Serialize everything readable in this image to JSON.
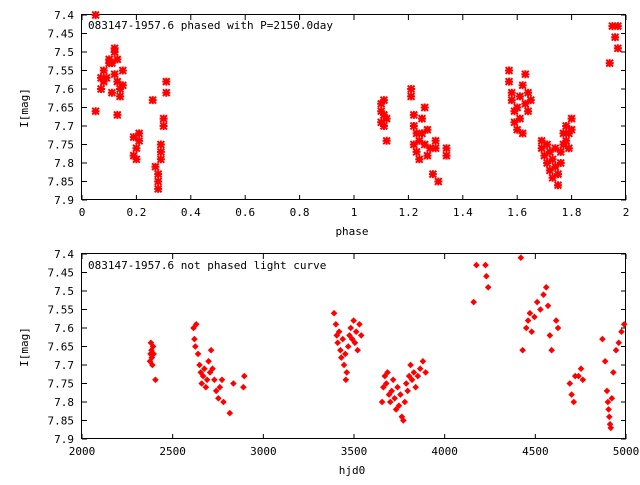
{
  "chart_data": [
    {
      "type": "scatter",
      "title": "083147-1957.6 phased with P=2150.0day",
      "xlabel": "phase",
      "ylabel": "I[mag]",
      "xlim": [
        0,
        2
      ],
      "ylim": [
        7.4,
        7.9
      ],
      "y_inverted": true,
      "x_ticks": [
        "0",
        "0.2",
        "0.4",
        "0.6",
        "0.8",
        "1",
        "1.2",
        "1.4",
        "1.6",
        "1.8",
        "2"
      ],
      "y_ticks": [
        "7.4",
        "7.45",
        "7.5",
        "7.55",
        "7.6",
        "7.65",
        "7.7",
        "7.75",
        "7.8",
        "7.85",
        "7.9"
      ],
      "grid": false,
      "marker_color": "#ff0000",
      "points": [
        [
          0.05,
          7.4
        ],
        [
          0.05,
          7.66
        ],
        [
          0.07,
          7.57
        ],
        [
          0.07,
          7.6
        ],
        [
          0.08,
          7.58
        ],
        [
          0.08,
          7.55
        ],
        [
          0.09,
          7.57
        ],
        [
          0.1,
          7.53
        ],
        [
          0.1,
          7.52
        ],
        [
          0.11,
          7.61
        ],
        [
          0.11,
          7.53
        ],
        [
          0.12,
          7.49
        ],
        [
          0.12,
          7.5
        ],
        [
          0.12,
          7.56
        ],
        [
          0.13,
          7.58
        ],
        [
          0.13,
          7.52
        ],
        [
          0.13,
          7.67
        ],
        [
          0.14,
          7.62
        ],
        [
          0.14,
          7.6
        ],
        [
          0.15,
          7.55
        ],
        [
          0.15,
          7.59
        ],
        [
          0.19,
          7.78
        ],
        [
          0.19,
          7.73
        ],
        [
          0.2,
          7.76
        ],
        [
          0.2,
          7.79
        ],
        [
          0.21,
          7.72
        ],
        [
          0.21,
          7.74
        ],
        [
          0.26,
          7.63
        ],
        [
          0.27,
          7.81
        ],
        [
          0.28,
          7.85
        ],
        [
          0.28,
          7.87
        ],
        [
          0.28,
          7.83
        ],
        [
          0.29,
          7.79
        ],
        [
          0.29,
          7.75
        ],
        [
          0.29,
          7.77
        ],
        [
          0.3,
          7.68
        ],
        [
          0.3,
          7.7
        ],
        [
          0.31,
          7.58
        ],
        [
          0.31,
          7.61
        ],
        [
          1.1,
          7.66
        ],
        [
          1.1,
          7.69
        ],
        [
          1.1,
          7.64
        ],
        [
          1.11,
          7.67
        ],
        [
          1.11,
          7.7
        ],
        [
          1.11,
          7.63
        ],
        [
          1.12,
          7.68
        ],
        [
          1.12,
          7.74
        ],
        [
          1.21,
          7.6
        ],
        [
          1.21,
          7.62
        ],
        [
          1.22,
          7.67
        ],
        [
          1.22,
          7.7
        ],
        [
          1.22,
          7.75
        ],
        [
          1.23,
          7.72
        ],
        [
          1.23,
          7.77
        ],
        [
          1.24,
          7.74
        ],
        [
          1.24,
          7.79
        ],
        [
          1.25,
          7.68
        ],
        [
          1.25,
          7.72
        ],
        [
          1.26,
          7.65
        ],
        [
          1.26,
          7.75
        ],
        [
          1.27,
          7.71
        ],
        [
          1.27,
          7.78
        ],
        [
          1.28,
          7.76
        ],
        [
          1.29,
          7.83
        ],
        [
          1.3,
          7.74
        ],
        [
          1.3,
          7.76
        ],
        [
          1.31,
          7.85
        ],
        [
          1.34,
          7.76
        ],
        [
          1.34,
          7.78
        ],
        [
          1.57,
          7.55
        ],
        [
          1.57,
          7.58
        ],
        [
          1.58,
          7.61
        ],
        [
          1.58,
          7.63
        ],
        [
          1.59,
          7.66
        ],
        [
          1.59,
          7.69
        ],
        [
          1.6,
          7.71
        ],
        [
          1.6,
          7.65
        ],
        [
          1.61,
          7.62
        ],
        [
          1.61,
          7.68
        ],
        [
          1.62,
          7.72
        ],
        [
          1.62,
          7.59
        ],
        [
          1.63,
          7.56
        ],
        [
          1.63,
          7.64
        ],
        [
          1.64,
          7.61
        ],
        [
          1.64,
          7.66
        ],
        [
          1.65,
          7.63
        ],
        [
          1.69,
          7.74
        ],
        [
          1.69,
          7.76
        ],
        [
          1.7,
          7.78
        ],
        [
          1.71,
          7.75
        ],
        [
          1.71,
          7.8
        ],
        [
          1.72,
          7.77
        ],
        [
          1.72,
          7.82
        ],
        [
          1.73,
          7.79
        ],
        [
          1.73,
          7.84
        ],
        [
          1.74,
          7.76
        ],
        [
          1.74,
          7.81
        ],
        [
          1.75,
          7.83
        ],
        [
          1.75,
          7.86
        ],
        [
          1.76,
          7.8
        ],
        [
          1.76,
          7.77
        ],
        [
          1.77,
          7.75
        ],
        [
          1.77,
          7.72
        ],
        [
          1.78,
          7.74
        ],
        [
          1.78,
          7.7
        ],
        [
          1.79,
          7.76
        ],
        [
          1.79,
          7.72
        ],
        [
          1.8,
          7.68
        ],
        [
          1.8,
          7.71
        ],
        [
          1.94,
          7.53
        ],
        [
          1.95,
          7.43
        ],
        [
          1.96,
          7.46
        ],
        [
          1.97,
          7.43
        ],
        [
          1.97,
          7.49
        ]
      ]
    },
    {
      "type": "scatter",
      "title": "083147-1957.6 not phased light curve",
      "xlabel": "hjd0",
      "ylabel": "I[mag]",
      "xlim": [
        2000,
        5000
      ],
      "ylim": [
        7.4,
        7.9
      ],
      "y_inverted": true,
      "x_ticks": [
        "2000",
        "2500",
        "3000",
        "3500",
        "4000",
        "4500",
        "5000"
      ],
      "y_ticks": [
        "7.4",
        "7.45",
        "7.5",
        "7.55",
        "7.6",
        "7.65",
        "7.7",
        "7.75",
        "7.8",
        "7.85",
        "7.9"
      ],
      "grid": false,
      "marker_color": "#ff0000",
      "points": [
        [
          2375,
          7.69
        ],
        [
          2378,
          7.67
        ],
        [
          2380,
          7.64
        ],
        [
          2383,
          7.66
        ],
        [
          2385,
          7.68
        ],
        [
          2388,
          7.7
        ],
        [
          2392,
          7.65
        ],
        [
          2395,
          7.67
        ],
        [
          2405,
          7.74
        ],
        [
          2615,
          7.6
        ],
        [
          2620,
          7.63
        ],
        [
          2625,
          7.65
        ],
        [
          2630,
          7.59
        ],
        [
          2640,
          7.67
        ],
        [
          2648,
          7.7
        ],
        [
          2655,
          7.72
        ],
        [
          2660,
          7.75
        ],
        [
          2668,
          7.73
        ],
        [
          2675,
          7.71
        ],
        [
          2683,
          7.76
        ],
        [
          2690,
          7.74
        ],
        [
          2698,
          7.69
        ],
        [
          2706,
          7.72
        ],
        [
          2712,
          7.66
        ],
        [
          2720,
          7.71
        ],
        [
          2730,
          7.74
        ],
        [
          2740,
          7.77
        ],
        [
          2752,
          7.79
        ],
        [
          2760,
          7.76
        ],
        [
          2772,
          7.74
        ],
        [
          2780,
          7.8
        ],
        [
          2815,
          7.83
        ],
        [
          2835,
          7.75
        ],
        [
          2890,
          7.76
        ],
        [
          2895,
          7.73
        ],
        [
          3390,
          7.56
        ],
        [
          3400,
          7.59
        ],
        [
          3405,
          7.62
        ],
        [
          3410,
          7.64
        ],
        [
          3418,
          7.61
        ],
        [
          3425,
          7.66
        ],
        [
          3430,
          7.68
        ],
        [
          3438,
          7.63
        ],
        [
          3445,
          7.7
        ],
        [
          3452,
          7.67
        ],
        [
          3460,
          7.72
        ],
        [
          3468,
          7.65
        ],
        [
          3475,
          7.62
        ],
        [
          3482,
          7.6
        ],
        [
          3490,
          7.63
        ],
        [
          3498,
          7.58
        ],
        [
          3505,
          7.64
        ],
        [
          3512,
          7.61
        ],
        [
          3520,
          7.66
        ],
        [
          3530,
          7.59
        ],
        [
          3540,
          7.62
        ],
        [
          3455,
          7.74
        ],
        [
          3655,
          7.8
        ],
        [
          3662,
          7.76
        ],
        [
          3670,
          7.73
        ],
        [
          3678,
          7.75
        ],
        [
          3685,
          7.72
        ],
        [
          3693,
          7.78
        ],
        [
          3700,
          7.8
        ],
        [
          3708,
          7.77
        ],
        [
          3716,
          7.74
        ],
        [
          3724,
          7.79
        ],
        [
          3732,
          7.82
        ],
        [
          3740,
          7.76
        ],
        [
          3748,
          7.81
        ],
        [
          3756,
          7.78
        ],
        [
          3764,
          7.84
        ],
        [
          3772,
          7.85
        ],
        [
          3780,
          7.8
        ],
        [
          3788,
          7.75
        ],
        [
          3796,
          7.77
        ],
        [
          3804,
          7.73
        ],
        [
          3812,
          7.7
        ],
        [
          3820,
          7.74
        ],
        [
          3830,
          7.72
        ],
        [
          3840,
          7.76
        ],
        [
          3852,
          7.73
        ],
        [
          3865,
          7.71
        ],
        [
          3880,
          7.69
        ],
        [
          3895,
          7.72
        ],
        [
          4160,
          7.53
        ],
        [
          4175,
          7.43
        ],
        [
          4225,
          7.43
        ],
        [
          4230,
          7.46
        ],
        [
          4240,
          7.49
        ],
        [
          4420,
          7.41
        ],
        [
          4430,
          7.66
        ],
        [
          4450,
          7.6
        ],
        [
          4460,
          7.58
        ],
        [
          4470,
          7.56
        ],
        [
          4480,
          7.61
        ],
        [
          4495,
          7.57
        ],
        [
          4510,
          7.53
        ],
        [
          4528,
          7.55
        ],
        [
          4545,
          7.51
        ],
        [
          4560,
          7.49
        ],
        [
          4570,
          7.54
        ],
        [
          4580,
          7.62
        ],
        [
          4590,
          7.66
        ],
        [
          4615,
          7.58
        ],
        [
          4625,
          7.6
        ],
        [
          4690,
          7.75
        ],
        [
          4700,
          7.78
        ],
        [
          4712,
          7.8
        ],
        [
          4720,
          7.73
        ],
        [
          4738,
          7.73
        ],
        [
          4752,
          7.71
        ],
        [
          4762,
          7.74
        ],
        [
          4870,
          7.63
        ],
        [
          4885,
          7.69
        ],
        [
          4895,
          7.77
        ],
        [
          4900,
          7.8
        ],
        [
          4904,
          7.82
        ],
        [
          4908,
          7.84
        ],
        [
          4912,
          7.86
        ],
        [
          4916,
          7.87
        ],
        [
          4922,
          7.79
        ],
        [
          4930,
          7.72
        ],
        [
          4945,
          7.66
        ],
        [
          4960,
          7.64
        ],
        [
          4975,
          7.61
        ],
        [
          4990,
          7.59
        ]
      ]
    }
  ]
}
